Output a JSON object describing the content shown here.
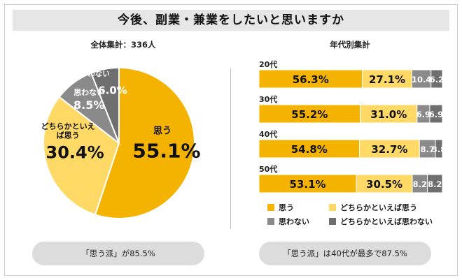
{
  "header": {
    "title": "今後、副業・兼業をしたいと思いますか"
  },
  "left": {
    "subtitle": "全体集計：336人",
    "summary": "「思う派」が85.5%"
  },
  "right": {
    "subtitle": "年代別集計",
    "summary": "「思う派」は40代が最多で87.5%"
  },
  "colors": {
    "yes": "#f5b301",
    "rather_yes": "#ffd966",
    "no": "#8a8a8a",
    "rather_no": "#6f6f6f"
  },
  "chart_data": [
    {
      "type": "pie",
      "title": "全体集計：336人",
      "slices": [
        {
          "label": "思う",
          "value": 55.1,
          "display": "55.1%"
        },
        {
          "label": "どちらかといえば思う",
          "value": 30.4,
          "display": "30.4%"
        },
        {
          "label": "思わない",
          "value": 8.5,
          "display": "8.5%"
        },
        {
          "label": "どちらかといえば思わない",
          "value": 6.0,
          "display": "6.0%"
        }
      ]
    },
    {
      "type": "bar",
      "orientation": "horizontal",
      "stacked": true,
      "title": "年代別集計",
      "categories": [
        "20代",
        "30代",
        "40代",
        "50代"
      ],
      "series": [
        {
          "name": "思う",
          "values": [
            56.3,
            55.2,
            54.8,
            53.1
          ],
          "labels": [
            "56.3%",
            "55.2%",
            "54.8%",
            "53.1%"
          ]
        },
        {
          "name": "どちらかといえば思う",
          "values": [
            27.1,
            31.0,
            32.7,
            30.5
          ],
          "labels": [
            "27.1%",
            "31.0%",
            "32.7%",
            "30.5%"
          ]
        },
        {
          "name": "思わない",
          "values": [
            10.4,
            6.9,
            8.7,
            8.2
          ],
          "labels": [
            "10.4",
            "6.9",
            "8.7",
            "8.2"
          ]
        },
        {
          "name": "どちらかといえば思わない",
          "values": [
            6.2,
            6.9,
            3.8,
            8.2
          ],
          "labels": [
            "6.2",
            "6.9",
            "3.8",
            "8.2"
          ]
        }
      ],
      "legend": [
        "思う",
        "どちらかといえば思う",
        "思わない",
        "どちらかといえば思わない"
      ],
      "legend_position": "bottom"
    }
  ]
}
